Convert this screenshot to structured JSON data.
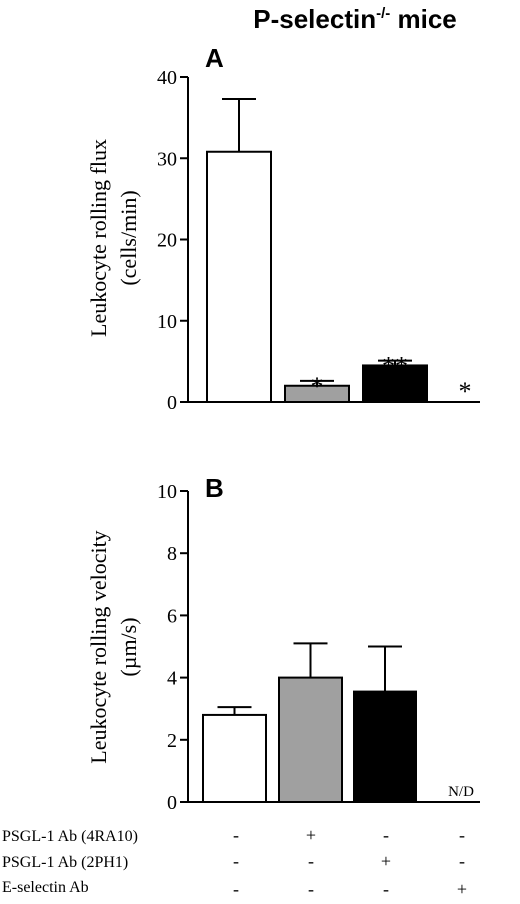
{
  "figure": {
    "title_main": "P-selectin",
    "title_sup": "-/-",
    "title_tail": " mice"
  },
  "chart_data": [
    {
      "panel": "A",
      "type": "bar",
      "ylabel_line1": "Leukocyte rolling flux",
      "ylabel_line2": "(cells/min)",
      "ylim": [
        0,
        40
      ],
      "yticks": [
        0,
        10,
        20,
        30,
        40
      ],
      "bars": [
        {
          "value": 30.8,
          "error": 6.5,
          "color": "#ffffff",
          "annotation": ""
        },
        {
          "value": 2.0,
          "error": 0.6,
          "color": "#a0a0a0",
          "annotation": "*"
        },
        {
          "value": 4.5,
          "error": 0.6,
          "color": "#000000",
          "annotation": "**"
        },
        {
          "value": 0,
          "error": 0,
          "color": "#ffffff",
          "annotation": "*"
        }
      ],
      "grid": false
    },
    {
      "panel": "B",
      "type": "bar",
      "ylabel_line1": "Leukocyte rolling velocity",
      "ylabel_line2": "(µm/s)",
      "ylim": [
        0,
        10
      ],
      "yticks": [
        0,
        2,
        4,
        6,
        8,
        10
      ],
      "bars": [
        {
          "value": 2.8,
          "error": 0.25,
          "color": "#ffffff",
          "annotation": ""
        },
        {
          "value": 4.0,
          "error": 1.1,
          "color": "#a0a0a0",
          "annotation": ""
        },
        {
          "value": 3.55,
          "error": 1.45,
          "color": "#000000",
          "annotation": ""
        },
        {
          "value": 0,
          "error": 0,
          "color": "#ffffff",
          "annotation": "N/D"
        }
      ],
      "grid": false
    }
  ],
  "treatment_table": {
    "rows": [
      {
        "label": "PSGL-1 Ab (4RA10)",
        "signs": [
          "-",
          "+",
          "-",
          "-"
        ]
      },
      {
        "label": "PSGL-1 Ab (2PH1)",
        "signs": [
          "-",
          "-",
          "+",
          "-"
        ]
      },
      {
        "label": "E-selectin Ab",
        "signs": [
          "-",
          "-",
          "-",
          "+"
        ]
      }
    ]
  }
}
